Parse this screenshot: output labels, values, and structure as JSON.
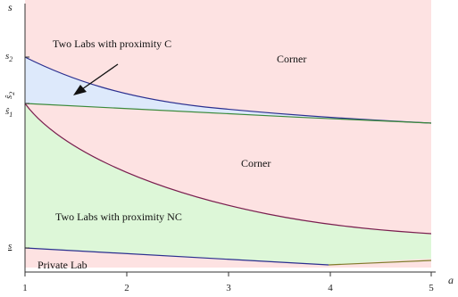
{
  "chart_data": {
    "type": "region-diagram",
    "xlabel": "a",
    "ylabel": "s",
    "x_ticks": [
      "1",
      "2",
      "3",
      "4",
      "5"
    ],
    "xlim": [
      1,
      5
    ],
    "y_markers": [
      {
        "id": "s2",
        "text": "s",
        "sub": "2"
      },
      {
        "id": "s-half",
        "text": "ŝ",
        "sub": "2"
      },
      {
        "id": "s1",
        "text": "ŝ",
        "sub": "1"
      },
      {
        "id": "s-low",
        "text": "s"
      }
    ],
    "regions": [
      {
        "id": "corner-top",
        "label": "Corner",
        "color": "#fde2e2"
      },
      {
        "id": "two-labs-c",
        "label": "Two Labs with proximity C",
        "color": "#dde9fb"
      },
      {
        "id": "corner-mid",
        "label": "Corner",
        "color": "#fde2e2"
      },
      {
        "id": "two-labs-nc",
        "label": "Two Labs with proximity NC",
        "color": "#ddf7d8"
      },
      {
        "id": "private-lab",
        "label": "Private Lab",
        "color": "#fde2e2"
      }
    ],
    "colors": {
      "navy": "#2b2f8f",
      "maroon": "#7a1f4f",
      "green": "#3b8a3b",
      "olive": "#7e7c2a",
      "axis": "#333333"
    }
  }
}
